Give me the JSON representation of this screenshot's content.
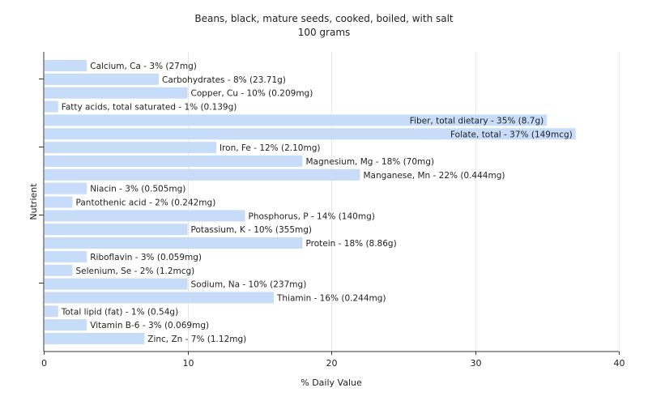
{
  "chart_data": {
    "type": "bar",
    "orientation": "horizontal",
    "title": "Beans, black, mature seeds, cooked, boiled, with salt",
    "subtitle": "100 grams",
    "xlabel": "% Daily Value",
    "ylabel": "Nutrient",
    "xlim": [
      0,
      40
    ],
    "xticks": [
      0,
      10,
      20,
      30,
      40
    ],
    "grid": true,
    "bar_color": "#c6dcf8",
    "grid_color": "#e6e6e6",
    "categories": [
      "Calcium, Ca",
      "Carbohydrates",
      "Copper, Cu",
      "Fatty acids, total saturated",
      "Fiber, total dietary",
      "Folate, total",
      "Iron, Fe",
      "Magnesium, Mg",
      "Manganese, Mn",
      "Niacin",
      "Pantothenic acid",
      "Phosphorus, P",
      "Potassium, K",
      "Protein",
      "Riboflavin",
      "Selenium, Se",
      "Sodium, Na",
      "Thiamin",
      "Total lipid (fat)",
      "Vitamin B-6",
      "Zinc, Zn"
    ],
    "values": [
      3,
      8,
      10,
      1,
      35,
      37,
      12,
      18,
      22,
      3,
      2,
      14,
      10,
      18,
      3,
      2,
      10,
      16,
      1,
      3,
      7
    ],
    "labels": [
      "Calcium, Ca - 3% (27mg)",
      "Carbohydrates - 8% (23.71g)",
      "Copper, Cu - 10% (0.209mg)",
      "Fatty acids, total saturated - 1% (0.139g)",
      "Fiber, total dietary - 35% (8.7g)",
      "Folate, total - 37% (149mcg)",
      "Iron, Fe - 12% (2.10mg)",
      "Magnesium, Mg - 18% (70mg)",
      "Manganese, Mn - 22% (0.444mg)",
      "Niacin - 3% (0.505mg)",
      "Pantothenic acid - 2% (0.242mg)",
      "Phosphorus, P - 14% (140mg)",
      "Potassium, K - 10% (355mg)",
      "Protein - 18% (8.86g)",
      "Riboflavin - 3% (0.059mg)",
      "Selenium, Se - 2% (1.2mcg)",
      "Sodium, Na - 10% (237mg)",
      "Thiamin - 16% (0.244mg)",
      "Total lipid (fat) - 1% (0.54g)",
      "Vitamin B-6 - 3% (0.069mg)",
      "Zinc, Zn - 7% (1.12mg)"
    ]
  }
}
